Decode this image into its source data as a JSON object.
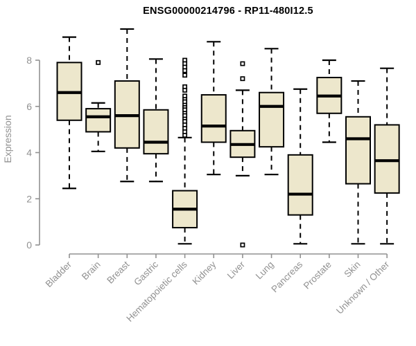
{
  "chart_data": {
    "type": "boxplot",
    "title": "ENSG00000214796 - RP11-480I12.5",
    "ylabel": "Expression",
    "xlabel": "",
    "ylim": [
      0,
      8
    ],
    "yticks": [
      0,
      2,
      4,
      6,
      8
    ],
    "grid": false,
    "legend": false,
    "categories": [
      "Bladder",
      "Brain",
      "Breast",
      "Gastric",
      "Hematopoietic cells",
      "Kidney",
      "Liver",
      "Lung",
      "Pancreas",
      "Prostate",
      "Skin",
      "Unknown / Other"
    ],
    "boxes": [
      {
        "category": "Bladder",
        "whisker_low": 2.45,
        "q1": 5.4,
        "median": 6.6,
        "q3": 7.9,
        "whisker_high": 9.0,
        "outliers": []
      },
      {
        "category": "Brain",
        "whisker_low": 4.05,
        "q1": 4.9,
        "median": 5.55,
        "q3": 5.9,
        "whisker_high": 6.15,
        "outliers": [
          7.9
        ]
      },
      {
        "category": "Breast",
        "whisker_low": 2.75,
        "q1": 4.2,
        "median": 5.6,
        "q3": 7.1,
        "whisker_high": 9.35,
        "outliers": []
      },
      {
        "category": "Gastric",
        "whisker_low": 2.75,
        "q1": 3.95,
        "median": 4.45,
        "q3": 5.85,
        "whisker_high": 8.05,
        "outliers": []
      },
      {
        "category": "Hematopoietic cells",
        "whisker_low": 0.05,
        "q1": 0.75,
        "median": 1.55,
        "q3": 2.35,
        "whisker_high": 4.65,
        "outliers": [
          8.0,
          7.85,
          7.7,
          7.55,
          7.35,
          6.85,
          6.7,
          6.45,
          6.3,
          6.2,
          6.05,
          5.95,
          5.85,
          5.7,
          5.6,
          5.45,
          5.35,
          5.2,
          5.05,
          4.9,
          4.75
        ]
      },
      {
        "category": "Kidney",
        "whisker_low": 3.05,
        "q1": 4.45,
        "median": 5.15,
        "q3": 6.5,
        "whisker_high": 8.8,
        "outliers": []
      },
      {
        "category": "Liver",
        "whisker_low": 3.0,
        "q1": 3.8,
        "median": 4.35,
        "q3": 4.95,
        "whisker_high": 6.7,
        "outliers": [
          7.85,
          7.2,
          0.0
        ]
      },
      {
        "category": "Lung",
        "whisker_low": 3.05,
        "q1": 4.25,
        "median": 6.0,
        "q3": 6.6,
        "whisker_high": 8.5,
        "outliers": []
      },
      {
        "category": "Pancreas",
        "whisker_low": 0.05,
        "q1": 1.3,
        "median": 2.2,
        "q3": 3.9,
        "whisker_high": 6.75,
        "outliers": []
      },
      {
        "category": "Prostate",
        "whisker_low": 4.45,
        "q1": 5.7,
        "median": 6.45,
        "q3": 7.25,
        "whisker_high": 8.0,
        "outliers": []
      },
      {
        "category": "Skin",
        "whisker_low": 0.05,
        "q1": 2.65,
        "median": 4.6,
        "q3": 5.55,
        "whisker_high": 7.1,
        "outliers": []
      },
      {
        "category": "Unknown / Other",
        "whisker_low": 0.05,
        "q1": 2.25,
        "median": 3.65,
        "q3": 5.2,
        "whisker_high": 7.65,
        "outliers": []
      }
    ],
    "colors": {
      "box_fill": "#EDE7CC",
      "box_border": "#000000",
      "median": "#000000",
      "whisker": "#000000",
      "outlier": "#000000",
      "axis": "#919191",
      "title": "#000000",
      "background": "#ffffff"
    }
  }
}
